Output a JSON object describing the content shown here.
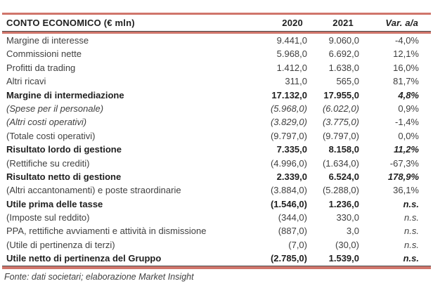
{
  "title": "CONTO ECONOMICO (€ mln)",
  "columns": [
    "2020",
    "2021",
    "Var. a/a"
  ],
  "rows": [
    {
      "label": "Margine di interesse",
      "v2020": "9.441,0",
      "v2021": "9.060,0",
      "var": "-4,0%",
      "style": "regular"
    },
    {
      "label": "Commissioni nette",
      "v2020": "5.968,0",
      "v2021": "6.692,0",
      "var": "12,1%",
      "style": "regular"
    },
    {
      "label": "Profitti da trading",
      "v2020": "1.412,0",
      "v2021": "1.638,0",
      "var": "16,0%",
      "style": "regular"
    },
    {
      "label": "Altri ricavi",
      "v2020": "311,0",
      "v2021": "565,0",
      "var": "81,7%",
      "style": "regular"
    },
    {
      "label": "Margine di intermediazione",
      "v2020": "17.132,0",
      "v2021": "17.955,0",
      "var": "4,8%",
      "style": "bold"
    },
    {
      "label": "(Spese per il personale)",
      "v2020": "(5.968,0)",
      "v2021": "(6.022,0)",
      "var": "0,9%",
      "style": "italic"
    },
    {
      "label": "(Altri costi operativi)",
      "v2020": "(3.829,0)",
      "v2021": "(3.775,0)",
      "var": "-1,4%",
      "style": "italic"
    },
    {
      "label": "(Totale costi operativi)",
      "v2020": "(9.797,0)",
      "v2021": "(9.797,0)",
      "var": "0,0%",
      "style": "regular"
    },
    {
      "label": "Risultato lordo di gestione",
      "v2020": "7.335,0",
      "v2021": "8.158,0",
      "var": "11,2%",
      "style": "bold"
    },
    {
      "label": "(Rettifiche su crediti)",
      "v2020": "(4.996,0)",
      "v2021": "(1.634,0)",
      "var": "-67,3%",
      "style": "regular"
    },
    {
      "label": "Risultato netto di gestione",
      "v2020": "2.339,0",
      "v2021": "6.524,0",
      "var": "178,9%",
      "style": "bold"
    },
    {
      "label": "(Altri accantonamenti) e poste straordinarie",
      "v2020": "(3.884,0)",
      "v2021": "(5.288,0)",
      "var": "36,1%",
      "style": "regular"
    },
    {
      "label": "Utile prima delle tasse",
      "v2020": "(1.546,0)",
      "v2021": "1.236,0",
      "var": "n.s.",
      "style": "bold"
    },
    {
      "label": "(Imposte sul reddito)",
      "v2020": "(344,0)",
      "v2021": "330,0",
      "var": "n.s.",
      "style": "regular-ns"
    },
    {
      "label": "PPA, rettifiche avviamenti e attività in dismissione",
      "v2020": "(887,0)",
      "v2021": "3,0",
      "var": "n.s.",
      "style": "regular-ns"
    },
    {
      "label": "(Utile di pertinenza di terzi)",
      "v2020": "(7,0)",
      "v2021": "(30,0)",
      "var": "n.s.",
      "style": "regular-ns"
    },
    {
      "label": "Utile netto di pertinenza del Gruppo",
      "v2020": "(2.785,0)",
      "v2021": "1.539,0",
      "var": "n.s.",
      "style": "bold"
    }
  ],
  "footer": "Fonte: dati societari; elaborazione Market Insight",
  "colors": {
    "accent_line": "#d0756b",
    "dark_line": "#4d4d4d",
    "text": "#3f3f3f",
    "bold_text": "#1f1f1f"
  }
}
